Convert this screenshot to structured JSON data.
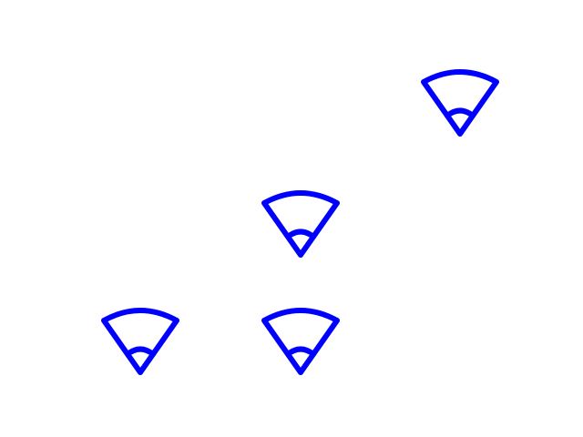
{
  "icons": [
    {
      "name": "wifi-icon",
      "color": "#0000ff"
    },
    {
      "name": "wifi-icon",
      "color": "#0000ff"
    },
    {
      "name": "wifi-icon",
      "color": "#0000ff"
    },
    {
      "name": "wifi-icon",
      "color": "#0000ff"
    }
  ]
}
